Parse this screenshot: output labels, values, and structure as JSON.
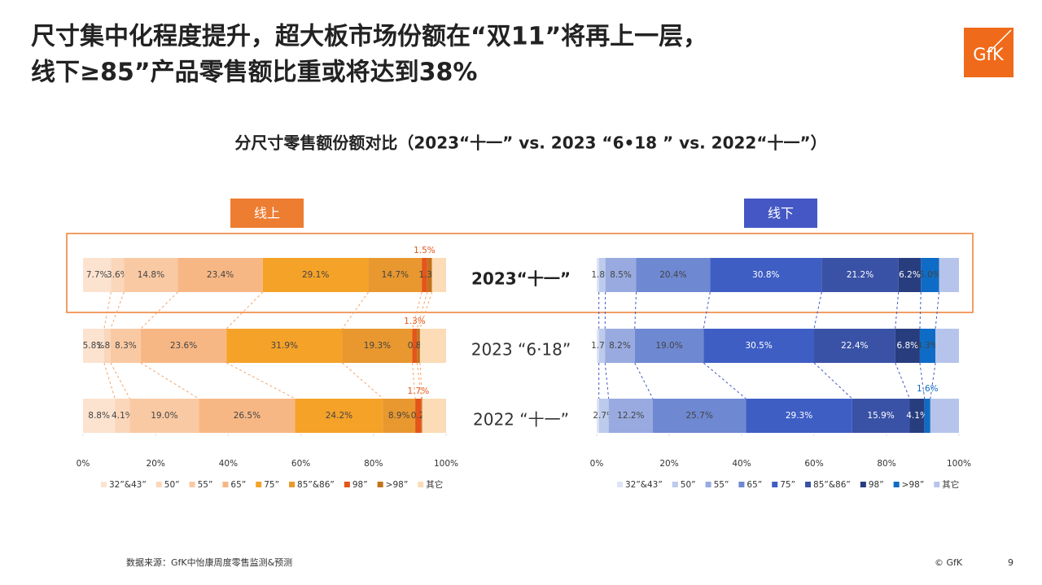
{
  "title": [
    "尺寸集中化程度提升，超大板市场份额在“双11”将再上一层，",
    "线下≥85”产品零售额比重或将达到38%"
  ],
  "logo": "GfK",
  "chart_title": "分尺寸零售额份额对比（2023“十一” vs. 2023 “6•18 ” vs. 2022“十一”）",
  "chart_data": [
    {
      "type": "bar",
      "orientation": "horizontal",
      "stacked": true,
      "panel_label": "线上",
      "panel_color": "#ed7d31",
      "categories": [
        "2023“十一”",
        "2023 “6·18”",
        "2022 “十一”"
      ],
      "xlim": [
        0,
        100
      ],
      "xticks": [
        {
          "value": 0,
          "label": "0%"
        },
        {
          "value": 20,
          "label": "20%"
        },
        {
          "value": 40,
          "label": "40%"
        },
        {
          "value": 60,
          "label": "60%"
        },
        {
          "value": 80,
          "label": "80%"
        },
        {
          "value": 100,
          "label": "100%"
        }
      ],
      "series": [
        {
          "name": "32”&43”",
          "color": "#fce3d0",
          "values": [
            7.7,
            5.8,
            8.8
          ],
          "value_labels": [
            "7.7%",
            "5.8%",
            "8.8%"
          ]
        },
        {
          "name": "50”",
          "color": "#fad6ba",
          "values": [
            3.6,
            1.8,
            4.1
          ],
          "value_labels": [
            "3.6%",
            "1.8%",
            "4.1%"
          ]
        },
        {
          "name": "55”",
          "color": "#f9c9a3",
          "values": [
            14.8,
            8.3,
            19.0
          ],
          "value_labels": [
            "14.8%",
            "8.3%",
            "19.0%"
          ]
        },
        {
          "name": "65”",
          "color": "#f7b784",
          "values": [
            23.4,
            23.6,
            26.5
          ],
          "value_labels": [
            "23.4%",
            "23.6%",
            "26.5%"
          ]
        },
        {
          "name": "75”",
          "color": "#f5a229",
          "values": [
            29.1,
            31.9,
            24.2
          ],
          "value_labels": [
            "29.1%",
            "31.9%",
            "24.2%"
          ]
        },
        {
          "name": "85”&86”",
          "color": "#e8982f",
          "values": [
            14.7,
            19.3,
            8.9
          ],
          "value_labels": [
            "14.7%",
            "19.3%",
            "8.9%"
          ]
        },
        {
          "name": "98”",
          "color": "#e4541b",
          "values": [
            1.5,
            1.3,
            1.7
          ],
          "value_labels": [
            "1.5%",
            "1.3%",
            "1.7%"
          ]
        },
        {
          "name": ">98”",
          "color": "#c4711b",
          "values": [
            1.3,
            0.8,
            0.2
          ],
          "value_labels": [
            "1.3%",
            "0.8%",
            "0.2%"
          ]
        },
        {
          "name": "其它",
          "color": "#fbdcb6",
          "values": [
            3.9,
            7.2,
            6.6
          ],
          "value_labels": [
            null,
            null,
            null
          ]
        }
      ]
    },
    {
      "type": "bar",
      "orientation": "horizontal",
      "stacked": true,
      "panel_label": "线下",
      "panel_color": "#4457c4",
      "categories": [
        "2023“十一”",
        "2023 “6·18”",
        "2022 “十一”"
      ],
      "xlim": [
        0,
        100
      ],
      "xticks": [
        {
          "value": 0,
          "label": "0%"
        },
        {
          "value": 20,
          "label": "20%"
        },
        {
          "value": 40,
          "label": "40%"
        },
        {
          "value": 60,
          "label": "60%"
        },
        {
          "value": 80,
          "label": "80%"
        },
        {
          "value": 100,
          "label": "100%"
        }
      ],
      "series": [
        {
          "name": "32”&43”",
          "color": "#dde4f5",
          "values": [
            0.6,
            0.6,
            0.6
          ],
          "value_labels": [
            null,
            null,
            null
          ]
        },
        {
          "name": "50”",
          "color": "#bccaec",
          "values": [
            1.8,
            1.7,
            2.7
          ],
          "value_labels": [
            "1.8%",
            "1.7%",
            "2.7%"
          ]
        },
        {
          "name": "55”",
          "color": "#98aadf",
          "values": [
            8.5,
            8.2,
            12.2
          ],
          "value_labels": [
            "8.5%",
            "8.2%",
            "12.2%"
          ]
        },
        {
          "name": "65”",
          "color": "#6e88d2",
          "values": [
            20.4,
            19.0,
            25.7
          ],
          "value_labels": [
            "20.4%",
            "19.0%",
            "25.7%"
          ]
        },
        {
          "name": "75”",
          "color": "#3e5ec4",
          "values": [
            30.8,
            30.5,
            29.3
          ],
          "value_labels": [
            "30.8%",
            "30.5%",
            "29.3%"
          ]
        },
        {
          "name": "85”&86”",
          "color": "#3a52a6",
          "values": [
            21.2,
            22.4,
            15.9
          ],
          "value_labels": [
            "21.2%",
            "22.4%",
            "15.9%"
          ]
        },
        {
          "name": "98”",
          "color": "#283d7e",
          "values": [
            6.2,
            6.8,
            4.1
          ],
          "value_labels": [
            "6.2%",
            "6.8%",
            "4.1%"
          ]
        },
        {
          "name": ">98”",
          "color": "#0f6cc6",
          "values": [
            5.0,
            4.3,
            1.6
          ],
          "value_labels": [
            "5.0%",
            "4.3%",
            "1.6%"
          ]
        },
        {
          "name": "其它",
          "color": "#b6c4eb",
          "values": [
            5.5,
            6.5,
            7.9
          ],
          "value_labels": [
            null,
            null,
            null
          ]
        }
      ]
    }
  ],
  "footer": {
    "source": "数据来源：GfK中怡康周度零售监测&预测",
    "copyright": "© GfK",
    "page": "9"
  }
}
